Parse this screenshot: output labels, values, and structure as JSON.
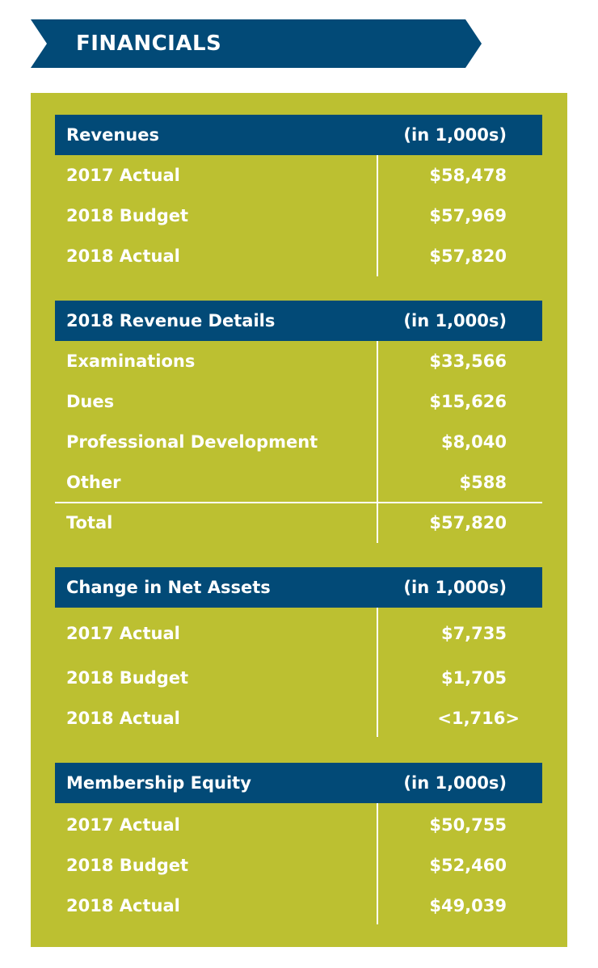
{
  "title": "FINANCIALS",
  "colors": {
    "navy": "#024a77",
    "olive": "#bcc031",
    "text": "#ffffff"
  },
  "sections": [
    {
      "header": "Revenues",
      "unit": "(in 1,000s)",
      "rows": [
        {
          "label": "2017 Actual",
          "value": "$58,478"
        },
        {
          "label": "2018 Budget",
          "value": "$57,969"
        },
        {
          "label": "2018 Actual",
          "value": "$57,820"
        }
      ]
    },
    {
      "header": "2018 Revenue Details",
      "unit": "(in 1,000s)",
      "rows": [
        {
          "label": "Examinations",
          "value": "$33,566"
        },
        {
          "label": "Dues",
          "value": "$15,626"
        },
        {
          "label": "Professional Development",
          "value": "$8,040"
        },
        {
          "label": "Other",
          "value": "$588"
        },
        {
          "label": "Total",
          "value": "$57,820"
        }
      ]
    },
    {
      "header": "Change in Net Assets",
      "unit": "(in 1,000s)",
      "rows": [
        {
          "label": "2017 Actual",
          "value": "$7,735"
        },
        {
          "label": "2018 Budget",
          "value": "$1,705"
        },
        {
          "label": "2018 Actual",
          "value": "<1,716>"
        }
      ]
    },
    {
      "header": "Membership Equity",
      "unit": "(in 1,000s)",
      "rows": [
        {
          "label": "2017 Actual",
          "value": "$50,755"
        },
        {
          "label": "2018 Budget",
          "value": "$52,460"
        },
        {
          "label": "2018 Actual",
          "value": "$49,039"
        }
      ]
    }
  ]
}
